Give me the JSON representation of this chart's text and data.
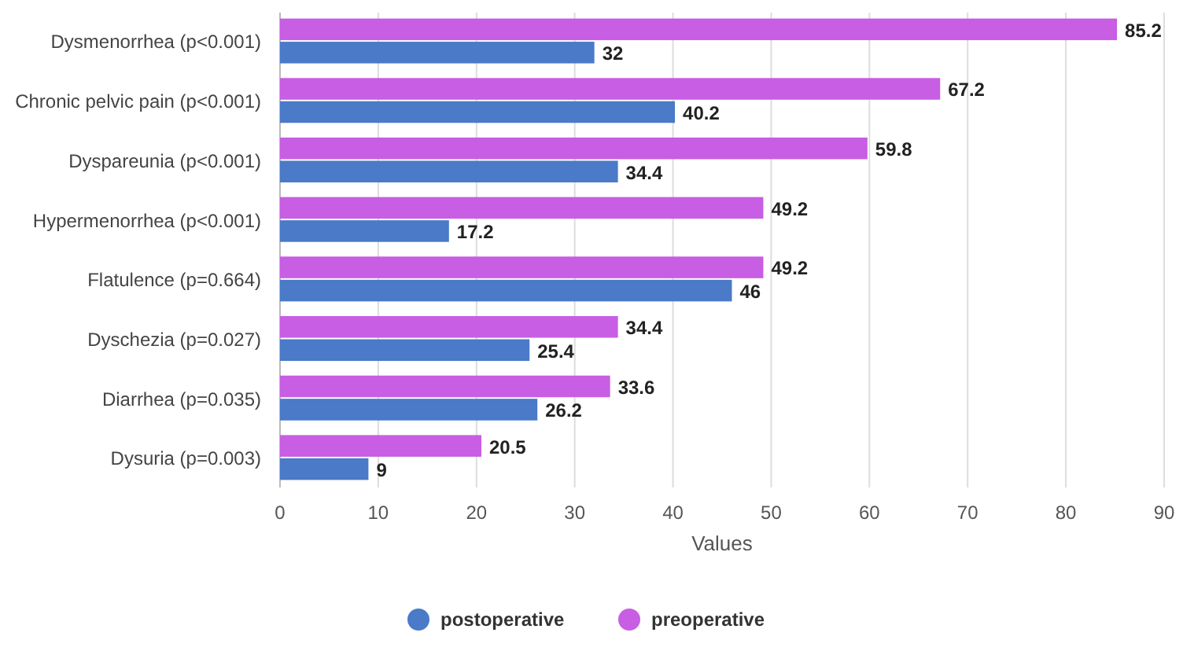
{
  "chart_data": {
    "type": "bar",
    "orientation": "horizontal",
    "xlabel": "Values",
    "categories": [
      "Dysmenorrhea (p<0.001)",
      "Chronic pelvic pain (p<0.001)",
      "Dyspareunia (p<0.001)",
      "Hypermenorrhea (p<0.001)",
      "Flatulence (p=0.664)",
      "Dyschezia (p=0.027)",
      "Diarrhea (p=0.035)",
      "Dysuria (p=0.003)"
    ],
    "series": [
      {
        "name": "postoperative",
        "color": "#4a7ac8",
        "values": [
          32,
          40.2,
          34.4,
          17.2,
          46,
          25.4,
          26.2,
          9
        ]
      },
      {
        "name": "preoperative",
        "color": "#c75ee3",
        "values": [
          85.2,
          67.2,
          59.8,
          49.2,
          49.2,
          34.4,
          33.6,
          20.5
        ]
      }
    ],
    "xlim": [
      0,
      90
    ],
    "xticks": [
      0,
      10,
      20,
      30,
      40,
      50,
      60,
      70,
      80,
      90
    ],
    "grid": "x",
    "legend": "bottom",
    "data_labels": true
  }
}
